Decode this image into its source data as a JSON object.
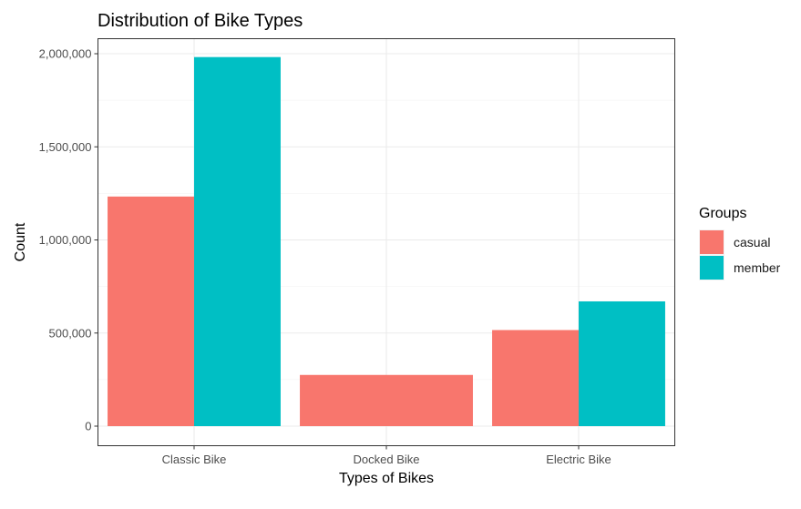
{
  "chart_data": {
    "type": "bar",
    "title": "Distribution of Bike Types",
    "xlabel": "Types of Bikes",
    "ylabel": "Count",
    "categories": [
      "Classic Bike",
      "Docked Bike",
      "Electric Bike"
    ],
    "series": [
      {
        "name": "casual",
        "color": "#F8766D",
        "values": [
          1233000,
          275000,
          516000
        ]
      },
      {
        "name": "member",
        "color": "#00BFC4",
        "values": [
          1982000,
          null,
          670000
        ]
      }
    ],
    "ylim": [
      0,
      2000000
    ],
    "y_ticks": [
      0,
      500000,
      1000000,
      1500000,
      2000000
    ],
    "y_tick_labels": [
      "0",
      "500,000",
      "1,000,000",
      "1,500,000",
      "2,000,000"
    ],
    "grid": true,
    "legend": {
      "title": "Groups",
      "position": "right"
    },
    "dodge_preserve": "total"
  }
}
